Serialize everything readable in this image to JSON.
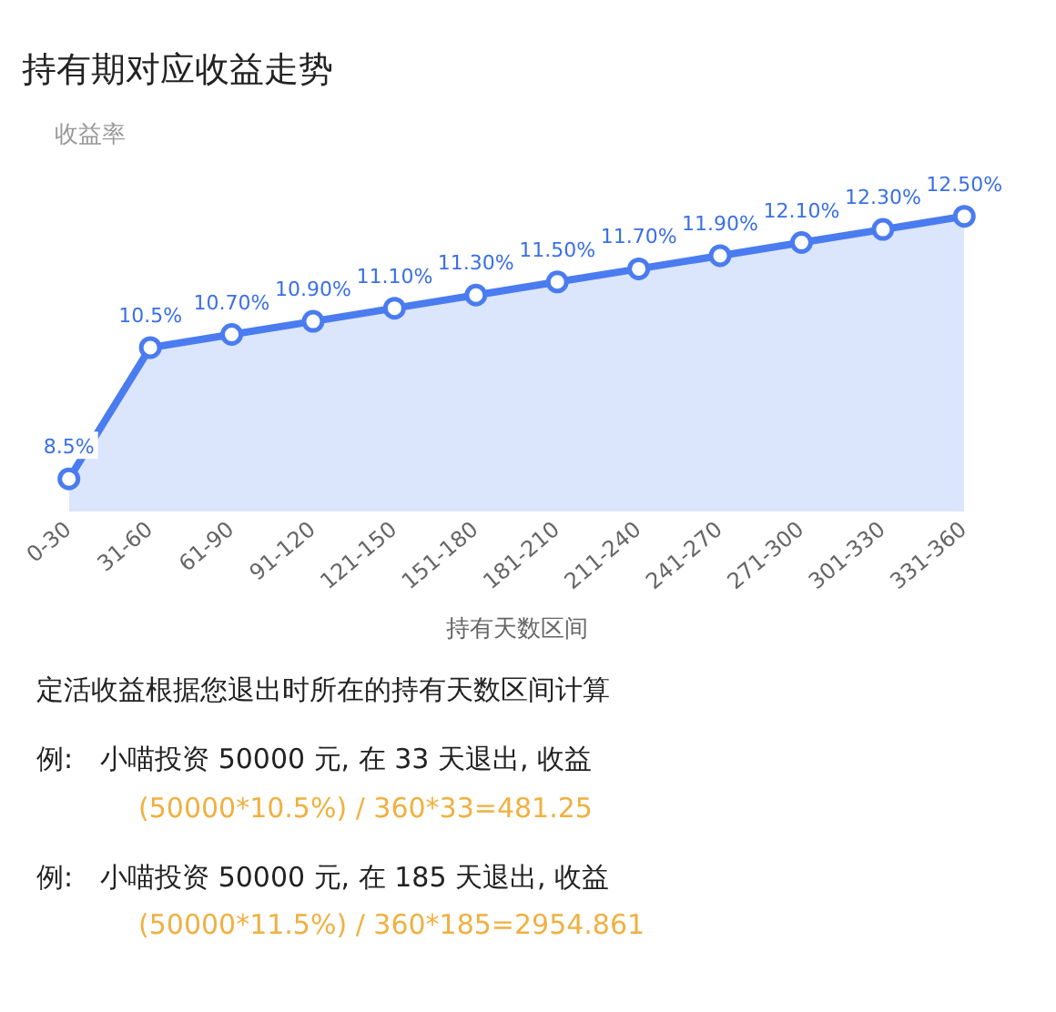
{
  "chart_data": {
    "type": "area",
    "title": "持有期对应收益走势",
    "ylabel": "收益率",
    "xlabel": "持有天数区间",
    "categories": [
      "0-30",
      "31-60",
      "61-90",
      "91-120",
      "121-150",
      "151-180",
      "181-210",
      "211-240",
      "241-270",
      "271-300",
      "301-330",
      "331-360"
    ],
    "series": [
      {
        "color": "#4a7cf0",
        "values": [
          8.5,
          10.5,
          10.7,
          10.9,
          11.1,
          11.3,
          11.5,
          11.7,
          11.9,
          12.1,
          12.3,
          12.5
        ],
        "value_labels": [
          "8.5%",
          "10.5%",
          "10.70%",
          "10.90%",
          "11.10%",
          "11.30%",
          "11.50%",
          "11.70%",
          "11.90%",
          "12.10%",
          "12.30%",
          "12.50%"
        ]
      }
    ],
    "marker": "circle",
    "legend": false,
    "grid": false,
    "annotations": [
      "定活收益根据您退出时所在的持有天数区间计算",
      "例:　小喵投资 50000 元, 在 33 天退出, 收益",
      "(50000*10.5%) / 360*33=481.25",
      "例:　小喵投资 50000 元, 在 185 天退出, 收益",
      "(50000*11.5%) / 360*185=2954.861"
    ]
  }
}
